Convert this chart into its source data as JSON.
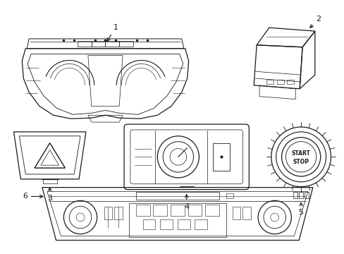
{
  "bg_color": "#ffffff",
  "line_color": "#1a1a1a",
  "line_width": 0.9,
  "fig_width": 4.89,
  "fig_height": 3.6,
  "dpi": 100
}
